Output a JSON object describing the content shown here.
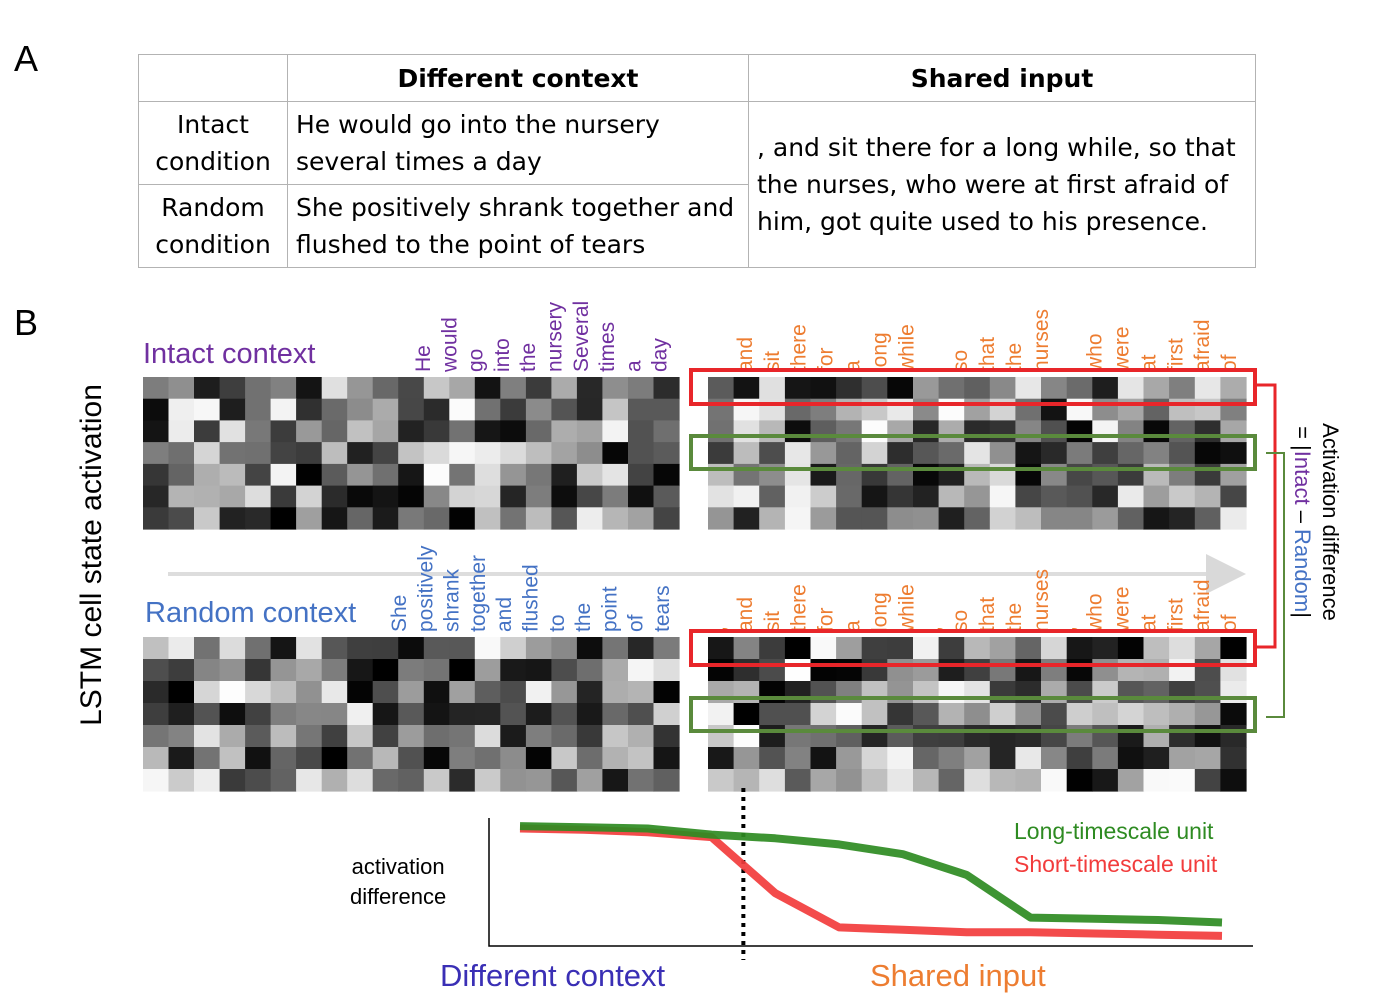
{
  "panel_a_label": "A",
  "panel_b_label": "B",
  "table": {
    "header_context": "Different context",
    "header_input": "Shared input",
    "rows": [
      {
        "condition_line1": "Intact",
        "condition_line2": "condition",
        "context_line1": "He would go into the nursery",
        "context_line2": "several times a day"
      },
      {
        "condition_line1": "Random",
        "condition_line2": "condition",
        "context_line1": "She positively shrank together and",
        "context_line2": "flushed to the point of tears"
      }
    ],
    "shared_line1": ", and sit there for a long while, so that",
    "shared_line2": "the nurses, who were at first afraid of",
    "shared_line3": "him, got quite used to his presence."
  },
  "y_axis_label": "LSTM cell state activation",
  "intact_title": "Intact context",
  "random_title": "Random context",
  "intact_words": [
    "He",
    "would",
    "go",
    "into",
    "the",
    "nursery",
    "Several",
    "times",
    "a",
    "day"
  ],
  "random_words": [
    "She",
    "positively",
    "shrank",
    "together",
    "and",
    "flushed",
    "to",
    "the",
    "point",
    "of",
    "tears"
  ],
  "shared_words": [
    ",",
    "and",
    "sit",
    "there",
    "for",
    "a",
    "long",
    "while",
    ",",
    "so",
    "that",
    "the",
    "nurses",
    ",",
    "who",
    "were",
    "at",
    "first",
    "afraid",
    "of"
  ],
  "diff_label_line1": "Activation difference",
  "diff_label_eq": "= |",
  "diff_label_intact": "Intact",
  "diff_label_minus": " – ",
  "diff_label_random": "Random",
  "diff_label_end": "|",
  "colors": {
    "intact": "#7030a0",
    "random": "#4472c4",
    "shared": "#ed7d31",
    "long": "#2e8b22",
    "short": "#f23c3c",
    "different_context_label": "#3a2fb5",
    "box_red": "#e8262a",
    "box_green": "#5a8a3c"
  },
  "chart_data": {
    "type": "line",
    "ylabel": "activation difference",
    "xlabel_left": "Different context",
    "xlabel_right": "Shared input",
    "series": [
      {
        "name": "Long-timescale unit",
        "values": [
          0.95,
          0.94,
          0.93,
          0.88,
          0.85,
          0.8,
          0.72,
          0.55,
          0.2,
          0.19,
          0.18,
          0.16
        ]
      },
      {
        "name": "Short-timescale unit",
        "values": [
          0.93,
          0.92,
          0.9,
          0.86,
          0.4,
          0.12,
          0.1,
          0.08,
          0.08,
          0.07,
          0.06,
          0.05
        ]
      }
    ],
    "x": [
      0,
      1,
      2,
      3,
      4,
      5,
      6,
      7,
      8,
      9,
      10,
      11
    ],
    "context_boundary": 3.5,
    "ylim": [
      0,
      1
    ]
  }
}
